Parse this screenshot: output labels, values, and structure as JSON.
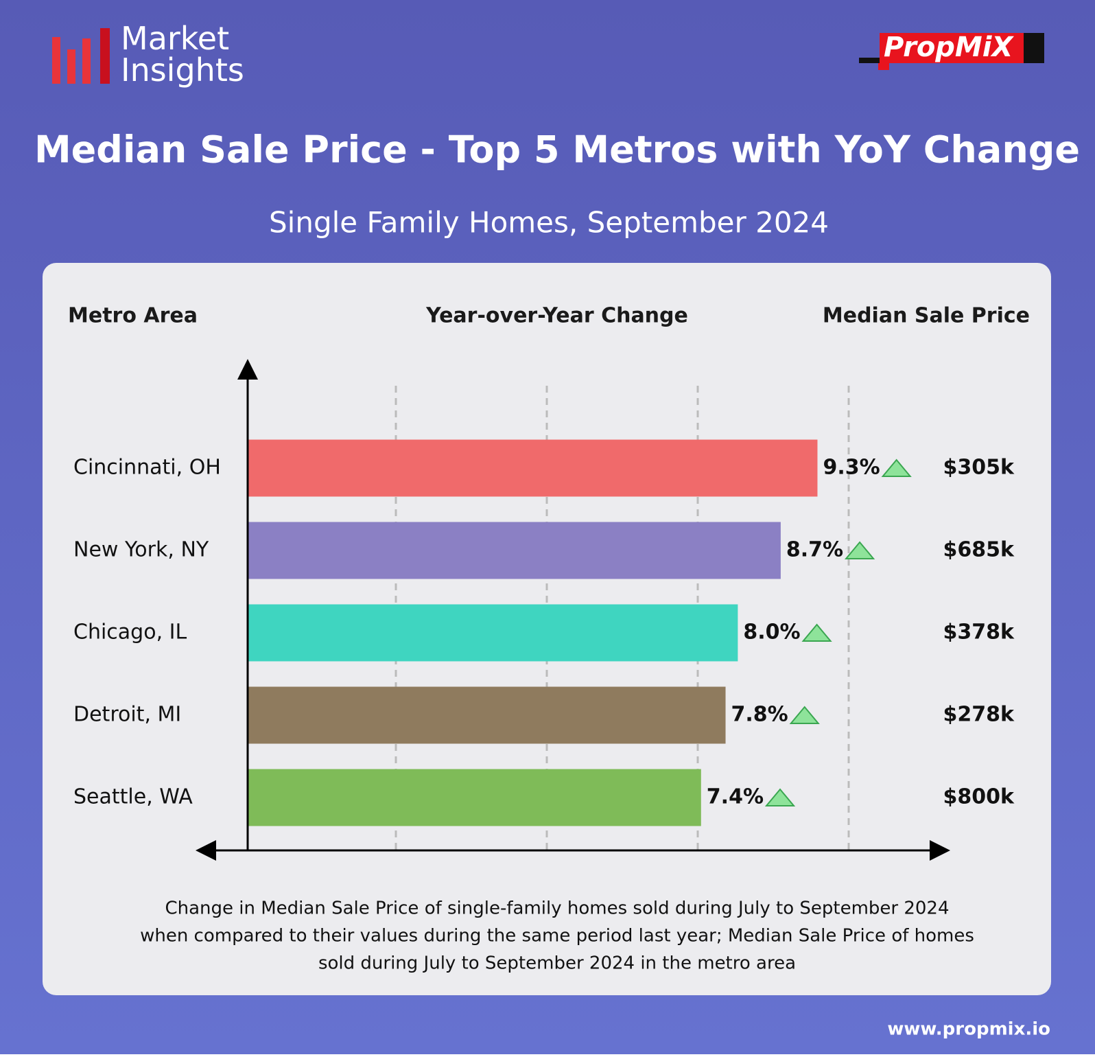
{
  "header": {
    "brand": "Market Insights",
    "logo": "PropMiX",
    "website": "www.propmix.io"
  },
  "chart_data": {
    "type": "bar",
    "orientation": "horizontal",
    "title": "Median Sale Price - Top 5 Metros with YoY Change",
    "subtitle": "Single Family Homes, September 2024",
    "category_label": "Metro Area",
    "x_label": "Year-over-Year Change",
    "categories": [
      "Cincinnati, OH",
      "New York, NY",
      "Chicago, IL",
      "Detroit, MI",
      "Seattle, WA"
    ],
    "values": [
      9.3,
      8.7,
      8.0,
      7.8,
      7.4
    ],
    "value_labels": [
      "9.3%",
      "8.7%",
      "8.0%",
      "7.8%",
      "7.4%"
    ],
    "colors": [
      "#f06a6b",
      "#8b80c4",
      "#3fd5c0",
      "#8f7b5e",
      "#7fbb58"
    ],
    "xlim": [
      0,
      11.4
    ],
    "price_title": "Median Sale Price",
    "prices": [
      "$305k",
      "$685k",
      "$378k",
      "$278k",
      "$800k"
    ],
    "note": [
      "Change in Median Sale Price of single-family homes sold during July to September 2024",
      "when compared to their values during the same period last year; Median Sale Price of homes",
      "sold during July to September 2024 in the metro area"
    ]
  }
}
